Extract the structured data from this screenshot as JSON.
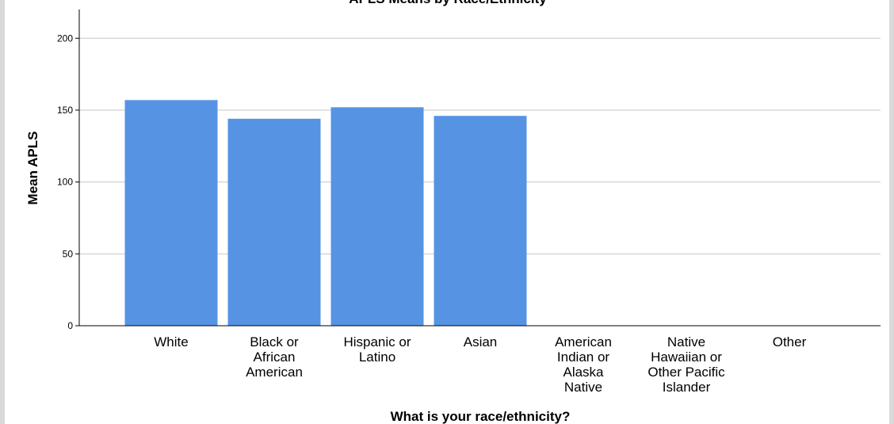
{
  "chart_data": {
    "type": "bar",
    "title": "APLS Means by Race/Ethnicity",
    "xlabel": "What is your race/ethnicity?",
    "ylabel": "Mean APLS",
    "ylim": [
      0,
      220
    ],
    "yticks": [
      0,
      50,
      100,
      150,
      200
    ],
    "grid": true,
    "categories": [
      "White",
      "Black or African American",
      "Hispanic or Latino",
      "Asian",
      "American Indian or Alaska Native",
      "Native Hawaiian or Other Pacific Islander",
      "Other"
    ],
    "category_lines": [
      [
        "White"
      ],
      [
        "Black or",
        "African",
        "American"
      ],
      [
        "Hispanic or",
        "Latino"
      ],
      [
        "Asian"
      ],
      [
        "American",
        "Indian or",
        "Alaska",
        "Native"
      ],
      [
        "Native",
        "Hawaiian or",
        "Other Pacific",
        "Islander"
      ],
      [
        "Other"
      ]
    ],
    "values": [
      157,
      144,
      152,
      146,
      null,
      null,
      null
    ],
    "colors": {
      "bar": "#5694e3",
      "grid": "#c8c8c8",
      "axis": "#000000"
    }
  }
}
